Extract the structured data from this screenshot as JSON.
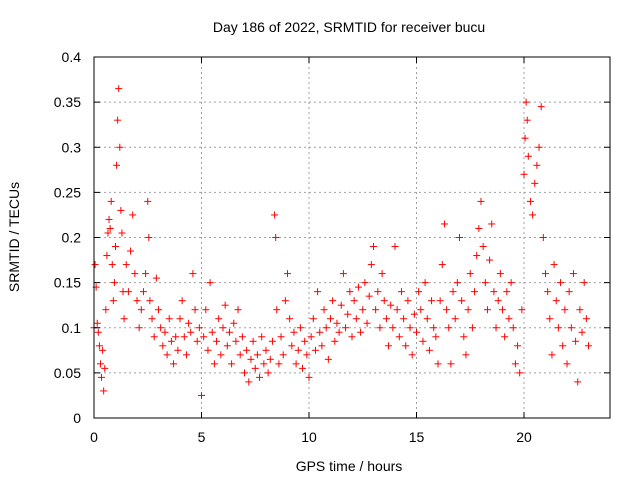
{
  "chart_data": {
    "type": "scatter",
    "title": "Day 186 of 2022, SRMTID for receiver bucu",
    "xlabel": "GPS time / hours",
    "ylabel": "SRMTID / TECUs",
    "xlim": [
      0,
      24
    ],
    "ylim": [
      0,
      0.4
    ],
    "xticks": [
      0,
      5,
      10,
      15,
      20
    ],
    "xtick_labels": [
      "0",
      "5",
      "10",
      "15",
      "20"
    ],
    "yticks": [
      0,
      0.05,
      0.1,
      0.15,
      0.2,
      0.25,
      0.3,
      0.35,
      0.4
    ],
    "ytick_labels": [
      "0",
      "0.05",
      "0.1",
      "0.15",
      "0.2",
      "0.25",
      "0.3",
      "0.35",
      "0.4"
    ],
    "grid": true,
    "marker": "+",
    "color": "#ff0000",
    "series": [
      {
        "name": "SRMTID",
        "points": [
          [
            0.0,
            0.1
          ],
          [
            0.05,
            0.17
          ],
          [
            0.1,
            0.145
          ],
          [
            0.15,
            0.105
          ],
          [
            0.2,
            0.095
          ],
          [
            0.25,
            0.08
          ],
          [
            0.3,
            0.06
          ],
          [
            0.35,
            0.045
          ],
          [
            0.4,
            0.075
          ],
          [
            0.45,
            0.03
          ],
          [
            0.5,
            0.055
          ],
          [
            0.55,
            0.12
          ],
          [
            0.6,
            0.18
          ],
          [
            0.65,
            0.205
          ],
          [
            0.7,
            0.22
          ],
          [
            0.75,
            0.21
          ],
          [
            0.8,
            0.24
          ],
          [
            0.85,
            0.17
          ],
          [
            0.9,
            0.13
          ],
          [
            0.95,
            0.15
          ],
          [
            1.0,
            0.19
          ],
          [
            1.05,
            0.28
          ],
          [
            1.1,
            0.33
          ],
          [
            1.15,
            0.365
          ],
          [
            1.2,
            0.3
          ],
          [
            1.25,
            0.23
          ],
          [
            1.3,
            0.205
          ],
          [
            1.35,
            0.14
          ],
          [
            1.4,
            0.11
          ],
          [
            1.5,
            0.17
          ],
          [
            1.6,
            0.14
          ],
          [
            1.7,
            0.185
          ],
          [
            1.8,
            0.225
          ],
          [
            1.9,
            0.16
          ],
          [
            2.0,
            0.13
          ],
          [
            2.1,
            0.1
          ],
          [
            2.2,
            0.12
          ],
          [
            2.3,
            0.14
          ],
          [
            2.4,
            0.16
          ],
          [
            2.5,
            0.24
          ],
          [
            2.55,
            0.2
          ],
          [
            2.6,
            0.13
          ],
          [
            2.7,
            0.11
          ],
          [
            2.8,
            0.09
          ],
          [
            2.9,
            0.155
          ],
          [
            3.0,
            0.12
          ],
          [
            3.1,
            0.1
          ],
          [
            3.2,
            0.08
          ],
          [
            3.3,
            0.095
          ],
          [
            3.4,
            0.07
          ],
          [
            3.5,
            0.11
          ],
          [
            3.6,
            0.085
          ],
          [
            3.7,
            0.06
          ],
          [
            3.8,
            0.09
          ],
          [
            3.9,
            0.075
          ],
          [
            4.0,
            0.11
          ],
          [
            4.1,
            0.13
          ],
          [
            4.2,
            0.09
          ],
          [
            4.3,
            0.07
          ],
          [
            4.4,
            0.105
          ],
          [
            4.5,
            0.095
          ],
          [
            4.6,
            0.16
          ],
          [
            4.7,
            0.12
          ],
          [
            4.8,
            0.085
          ],
          [
            4.9,
            0.1
          ],
          [
            5.0,
            0.025
          ],
          [
            5.1,
            0.09
          ],
          [
            5.2,
            0.12
          ],
          [
            5.3,
            0.075
          ],
          [
            5.4,
            0.15
          ],
          [
            5.5,
            0.095
          ],
          [
            5.6,
            0.06
          ],
          [
            5.7,
            0.085
          ],
          [
            5.8,
            0.11
          ],
          [
            5.9,
            0.07
          ],
          [
            6.0,
            0.1
          ],
          [
            6.1,
            0.125
          ],
          [
            6.2,
            0.08
          ],
          [
            6.3,
            0.095
          ],
          [
            6.4,
            0.06
          ],
          [
            6.5,
            0.105
          ],
          [
            6.6,
            0.085
          ],
          [
            6.7,
            0.12
          ],
          [
            6.8,
            0.07
          ],
          [
            6.9,
            0.09
          ],
          [
            7.0,
            0.05
          ],
          [
            7.1,
            0.075
          ],
          [
            7.2,
            0.04
          ],
          [
            7.3,
            0.065
          ],
          [
            7.4,
            0.085
          ],
          [
            7.5,
            0.055
          ],
          [
            7.6,
            0.07
          ],
          [
            7.7,
            0.045
          ],
          [
            7.8,
            0.09
          ],
          [
            7.9,
            0.06
          ],
          [
            8.0,
            0.075
          ],
          [
            8.1,
            0.05
          ],
          [
            8.2,
            0.065
          ],
          [
            8.3,
            0.085
          ],
          [
            8.4,
            0.225
          ],
          [
            8.45,
            0.2
          ],
          [
            8.5,
            0.12
          ],
          [
            8.6,
            0.06
          ],
          [
            8.7,
            0.09
          ],
          [
            8.8,
            0.07
          ],
          [
            8.9,
            0.13
          ],
          [
            9.0,
            0.16
          ],
          [
            9.1,
            0.11
          ],
          [
            9.2,
            0.08
          ],
          [
            9.3,
            0.095
          ],
          [
            9.4,
            0.06
          ],
          [
            9.5,
            0.075
          ],
          [
            9.6,
            0.1
          ],
          [
            9.7,
            0.055
          ],
          [
            9.8,
            0.085
          ],
          [
            9.9,
            0.07
          ],
          [
            10.0,
            0.045
          ],
          [
            10.1,
            0.09
          ],
          [
            10.2,
            0.11
          ],
          [
            10.3,
            0.075
          ],
          [
            10.4,
            0.14
          ],
          [
            10.5,
            0.095
          ],
          [
            10.6,
            0.08
          ],
          [
            10.7,
            0.12
          ],
          [
            10.8,
            0.1
          ],
          [
            10.9,
            0.065
          ],
          [
            11.0,
            0.11
          ],
          [
            11.1,
            0.13
          ],
          [
            11.2,
            0.085
          ],
          [
            11.3,
            0.105
          ],
          [
            11.4,
            0.095
          ],
          [
            11.5,
            0.125
          ],
          [
            11.6,
            0.16
          ],
          [
            11.7,
            0.1
          ],
          [
            11.8,
            0.115
          ],
          [
            11.9,
            0.14
          ],
          [
            12.0,
            0.09
          ],
          [
            12.1,
            0.13
          ],
          [
            12.2,
            0.11
          ],
          [
            12.3,
            0.145
          ],
          [
            12.4,
            0.095
          ],
          [
            12.5,
            0.12
          ],
          [
            12.6,
            0.15
          ],
          [
            12.7,
            0.105
          ],
          [
            12.8,
            0.135
          ],
          [
            12.9,
            0.17
          ],
          [
            13.0,
            0.19
          ],
          [
            13.1,
            0.12
          ],
          [
            13.2,
            0.14
          ],
          [
            13.3,
            0.1
          ],
          [
            13.4,
            0.16
          ],
          [
            13.5,
            0.13
          ],
          [
            13.6,
            0.11
          ],
          [
            13.7,
            0.08
          ],
          [
            13.8,
            0.125
          ],
          [
            13.9,
            0.1
          ],
          [
            14.0,
            0.19
          ],
          [
            14.1,
            0.12
          ],
          [
            14.2,
            0.09
          ],
          [
            14.3,
            0.14
          ],
          [
            14.4,
            0.11
          ],
          [
            14.5,
            0.08
          ],
          [
            14.6,
            0.13
          ],
          [
            14.7,
            0.1
          ],
          [
            14.8,
            0.07
          ],
          [
            14.9,
            0.115
          ],
          [
            15.0,
            0.095
          ],
          [
            15.1,
            0.14
          ],
          [
            15.2,
            0.12
          ],
          [
            15.3,
            0.085
          ],
          [
            15.4,
            0.15
          ],
          [
            15.5,
            0.11
          ],
          [
            15.6,
            0.075
          ],
          [
            15.7,
            0.13
          ],
          [
            15.8,
            0.1
          ],
          [
            15.9,
            0.09
          ],
          [
            16.0,
            0.06
          ],
          [
            16.1,
            0.13
          ],
          [
            16.2,
            0.17
          ],
          [
            16.3,
            0.215
          ],
          [
            16.4,
            0.12
          ],
          [
            16.5,
            0.1
          ],
          [
            16.6,
            0.06
          ],
          [
            16.7,
            0.14
          ],
          [
            16.8,
            0.11
          ],
          [
            16.9,
            0.15
          ],
          [
            17.0,
            0.2
          ],
          [
            17.1,
            0.13
          ],
          [
            17.2,
            0.09
          ],
          [
            17.3,
            0.07
          ],
          [
            17.4,
            0.12
          ],
          [
            17.5,
            0.16
          ],
          [
            17.6,
            0.1
          ],
          [
            17.7,
            0.14
          ],
          [
            17.8,
            0.18
          ],
          [
            17.9,
            0.21
          ],
          [
            18.0,
            0.24
          ],
          [
            18.1,
            0.19
          ],
          [
            18.2,
            0.15
          ],
          [
            18.3,
            0.12
          ],
          [
            18.4,
            0.175
          ],
          [
            18.5,
            0.215
          ],
          [
            18.6,
            0.14
          ],
          [
            18.7,
            0.1
          ],
          [
            18.8,
            0.13
          ],
          [
            18.9,
            0.16
          ],
          [
            19.0,
            0.12
          ],
          [
            19.1,
            0.09
          ],
          [
            19.2,
            0.14
          ],
          [
            19.3,
            0.11
          ],
          [
            19.4,
            0.15
          ],
          [
            19.5,
            0.1
          ],
          [
            19.6,
            0.06
          ],
          [
            19.7,
            0.08
          ],
          [
            19.8,
            0.05
          ],
          [
            19.9,
            0.12
          ],
          [
            20.0,
            0.27
          ],
          [
            20.05,
            0.31
          ],
          [
            20.1,
            0.35
          ],
          [
            20.15,
            0.33
          ],
          [
            20.2,
            0.29
          ],
          [
            20.3,
            0.24
          ],
          [
            20.4,
            0.225
          ],
          [
            20.5,
            0.26
          ],
          [
            20.6,
            0.28
          ],
          [
            20.7,
            0.3
          ],
          [
            20.8,
            0.345
          ],
          [
            20.9,
            0.2
          ],
          [
            21.0,
            0.16
          ],
          [
            21.1,
            0.14
          ],
          [
            21.2,
            0.11
          ],
          [
            21.3,
            0.07
          ],
          [
            21.4,
            0.17
          ],
          [
            21.5,
            0.13
          ],
          [
            21.6,
            0.1
          ],
          [
            21.7,
            0.15
          ],
          [
            21.8,
            0.08
          ],
          [
            21.9,
            0.12
          ],
          [
            22.0,
            0.06
          ],
          [
            22.1,
            0.14
          ],
          [
            22.2,
            0.1
          ],
          [
            22.3,
            0.16
          ],
          [
            22.4,
            0.085
          ],
          [
            22.5,
            0.04
          ],
          [
            22.6,
            0.12
          ],
          [
            22.7,
            0.095
          ],
          [
            22.8,
            0.15
          ],
          [
            22.9,
            0.11
          ],
          [
            23.0,
            0.08
          ]
        ]
      }
    ]
  }
}
